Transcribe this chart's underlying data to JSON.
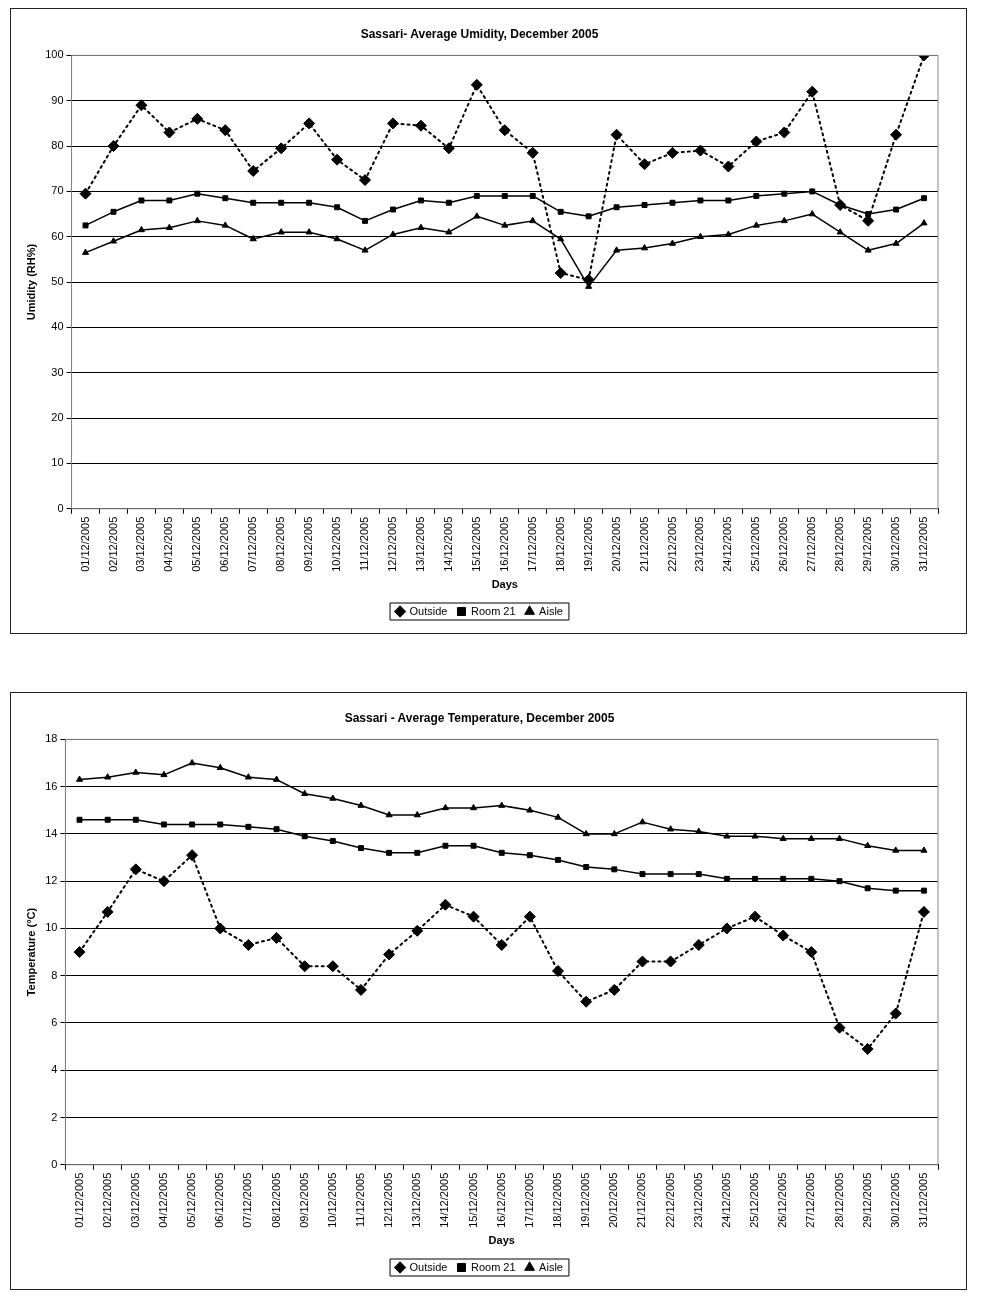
{
  "chart_data": [
    {
      "type": "line",
      "title": "Sassari- Average Umidity, December 2005",
      "xlabel": "Days",
      "ylabel": "Umidity (RH%)",
      "categories": [
        "01/12/2005",
        "02/12/2005",
        "03/12/2005",
        "04/12/2005",
        "05/12/2005",
        "06/12/2005",
        "07/12/2005",
        "08/12/2005",
        "09/12/2005",
        "10/12/2005",
        "11/12/2005",
        "12/12/2005",
        "13/12/2005",
        "14/12/2005",
        "15/12/2005",
        "16/12/2005",
        "17/12/2005",
        "18/12/2005",
        "19/12/2005",
        "20/12/2005",
        "21/12/2005",
        "22/12/2005",
        "23/12/2005",
        "24/12/2005",
        "25/12/2005",
        "26/12/2005",
        "27/12/2005",
        "28/12/2005",
        "29/12/2005",
        "30/12/2005",
        "31/12/2005"
      ],
      "series": [
        {
          "name": "Outside",
          "color": "#000000",
          "marker": "diamond",
          "line_style": "dotted",
          "values": [
            69.5,
            80,
            89,
            83,
            86,
            83.5,
            74.5,
            79.5,
            85,
            77,
            72.5,
            85,
            84.5,
            79.5,
            93.5,
            83.5,
            78.5,
            52,
            50.5,
            82.5,
            76,
            78.5,
            79,
            75.5,
            81,
            83,
            92,
            67,
            63.5,
            82.5,
            100
          ]
        },
        {
          "name": "Room 21",
          "color": "#000000",
          "marker": "square",
          "line_style": "solid",
          "values": [
            62.5,
            65.5,
            68,
            68,
            69.5,
            68.5,
            67.5,
            67.5,
            67.5,
            66.5,
            63.5,
            66,
            68,
            67.5,
            69,
            69,
            69,
            65.5,
            64.5,
            66.5,
            67,
            67.5,
            68,
            68,
            69,
            69.5,
            70,
            67,
            65,
            66,
            68.5
          ]
        },
        {
          "name": "Aisle",
          "color": "#000000",
          "marker": "triangle",
          "line_style": "solid",
          "values": [
            56.5,
            59,
            61.5,
            62,
            63.5,
            62.5,
            59.5,
            61,
            61,
            59.5,
            57,
            60.5,
            62,
            61,
            64.5,
            62.5,
            63.5,
            59.5,
            49,
            57,
            57.5,
            58.5,
            60,
            60.5,
            62.5,
            63.5,
            65,
            61,
            57,
            58.5,
            63
          ]
        }
      ],
      "ylim": [
        0,
        100
      ],
      "yticks": [
        0,
        10,
        20,
        30,
        40,
        50,
        60,
        70,
        80,
        90,
        100
      ],
      "grid": "y",
      "legend": "bottom"
    },
    {
      "type": "line",
      "title": "Sassari - Average Temperature, December 2005",
      "xlabel": "Days",
      "ylabel": "Temperature (°C)",
      "categories": [
        "01/12/2005",
        "02/12/2005",
        "03/12/2005",
        "04/12/2005",
        "05/12/2005",
        "06/12/2005",
        "07/12/2005",
        "08/12/2005",
        "09/12/2005",
        "10/12/2005",
        "11/12/2005",
        "12/12/2005",
        "13/12/2005",
        "14/12/2005",
        "15/12/2005",
        "16/12/2005",
        "17/12/2005",
        "18/12/2005",
        "19/12/2005",
        "20/12/2005",
        "21/12/2005",
        "22/12/2005",
        "23/12/2005",
        "24/12/2005",
        "25/12/2005",
        "26/12/2005",
        "27/12/2005",
        "28/12/2005",
        "29/12/2005",
        "30/12/2005",
        "31/12/2005"
      ],
      "series": [
        {
          "name": "Outside",
          "color": "#000000",
          "marker": "diamond",
          "line_style": "dotted",
          "values": [
            9.0,
            10.7,
            12.5,
            12.0,
            13.1,
            10.0,
            9.3,
            9.6,
            8.4,
            8.4,
            7.4,
            8.9,
            9.9,
            11.0,
            10.5,
            9.3,
            10.5,
            8.2,
            6.9,
            7.4,
            8.6,
            8.6,
            9.3,
            10.0,
            10.5,
            9.7,
            9.0,
            5.8,
            4.9,
            6.4,
            10.7
          ]
        },
        {
          "name": "Room 21",
          "color": "#000000",
          "marker": "square",
          "line_style": "solid",
          "values": [
            14.6,
            14.6,
            14.6,
            14.4,
            14.4,
            14.4,
            14.3,
            14.2,
            13.9,
            13.7,
            13.4,
            13.2,
            13.2,
            13.5,
            13.5,
            13.2,
            13.1,
            12.9,
            12.6,
            12.5,
            12.3,
            12.3,
            12.3,
            12.1,
            12.1,
            12.1,
            12.1,
            12.0,
            11.7,
            11.6,
            11.6
          ]
        },
        {
          "name": "Aisle",
          "color": "#000000",
          "marker": "triangle",
          "line_style": "solid",
          "values": [
            16.3,
            16.4,
            16.6,
            16.5,
            17.0,
            16.8,
            16.4,
            16.3,
            15.7,
            15.5,
            15.2,
            14.8,
            14.8,
            15.1,
            15.1,
            15.2,
            15.0,
            14.7,
            14.0,
            14.0,
            14.5,
            14.2,
            14.1,
            13.9,
            13.9,
            13.8,
            13.8,
            13.8,
            13.5,
            13.3,
            13.3
          ]
        }
      ],
      "ylim": [
        0,
        18
      ],
      "yticks": [
        0,
        2,
        4,
        6,
        8,
        10,
        12,
        14,
        16,
        18
      ],
      "grid": "y",
      "legend": "bottom"
    }
  ]
}
